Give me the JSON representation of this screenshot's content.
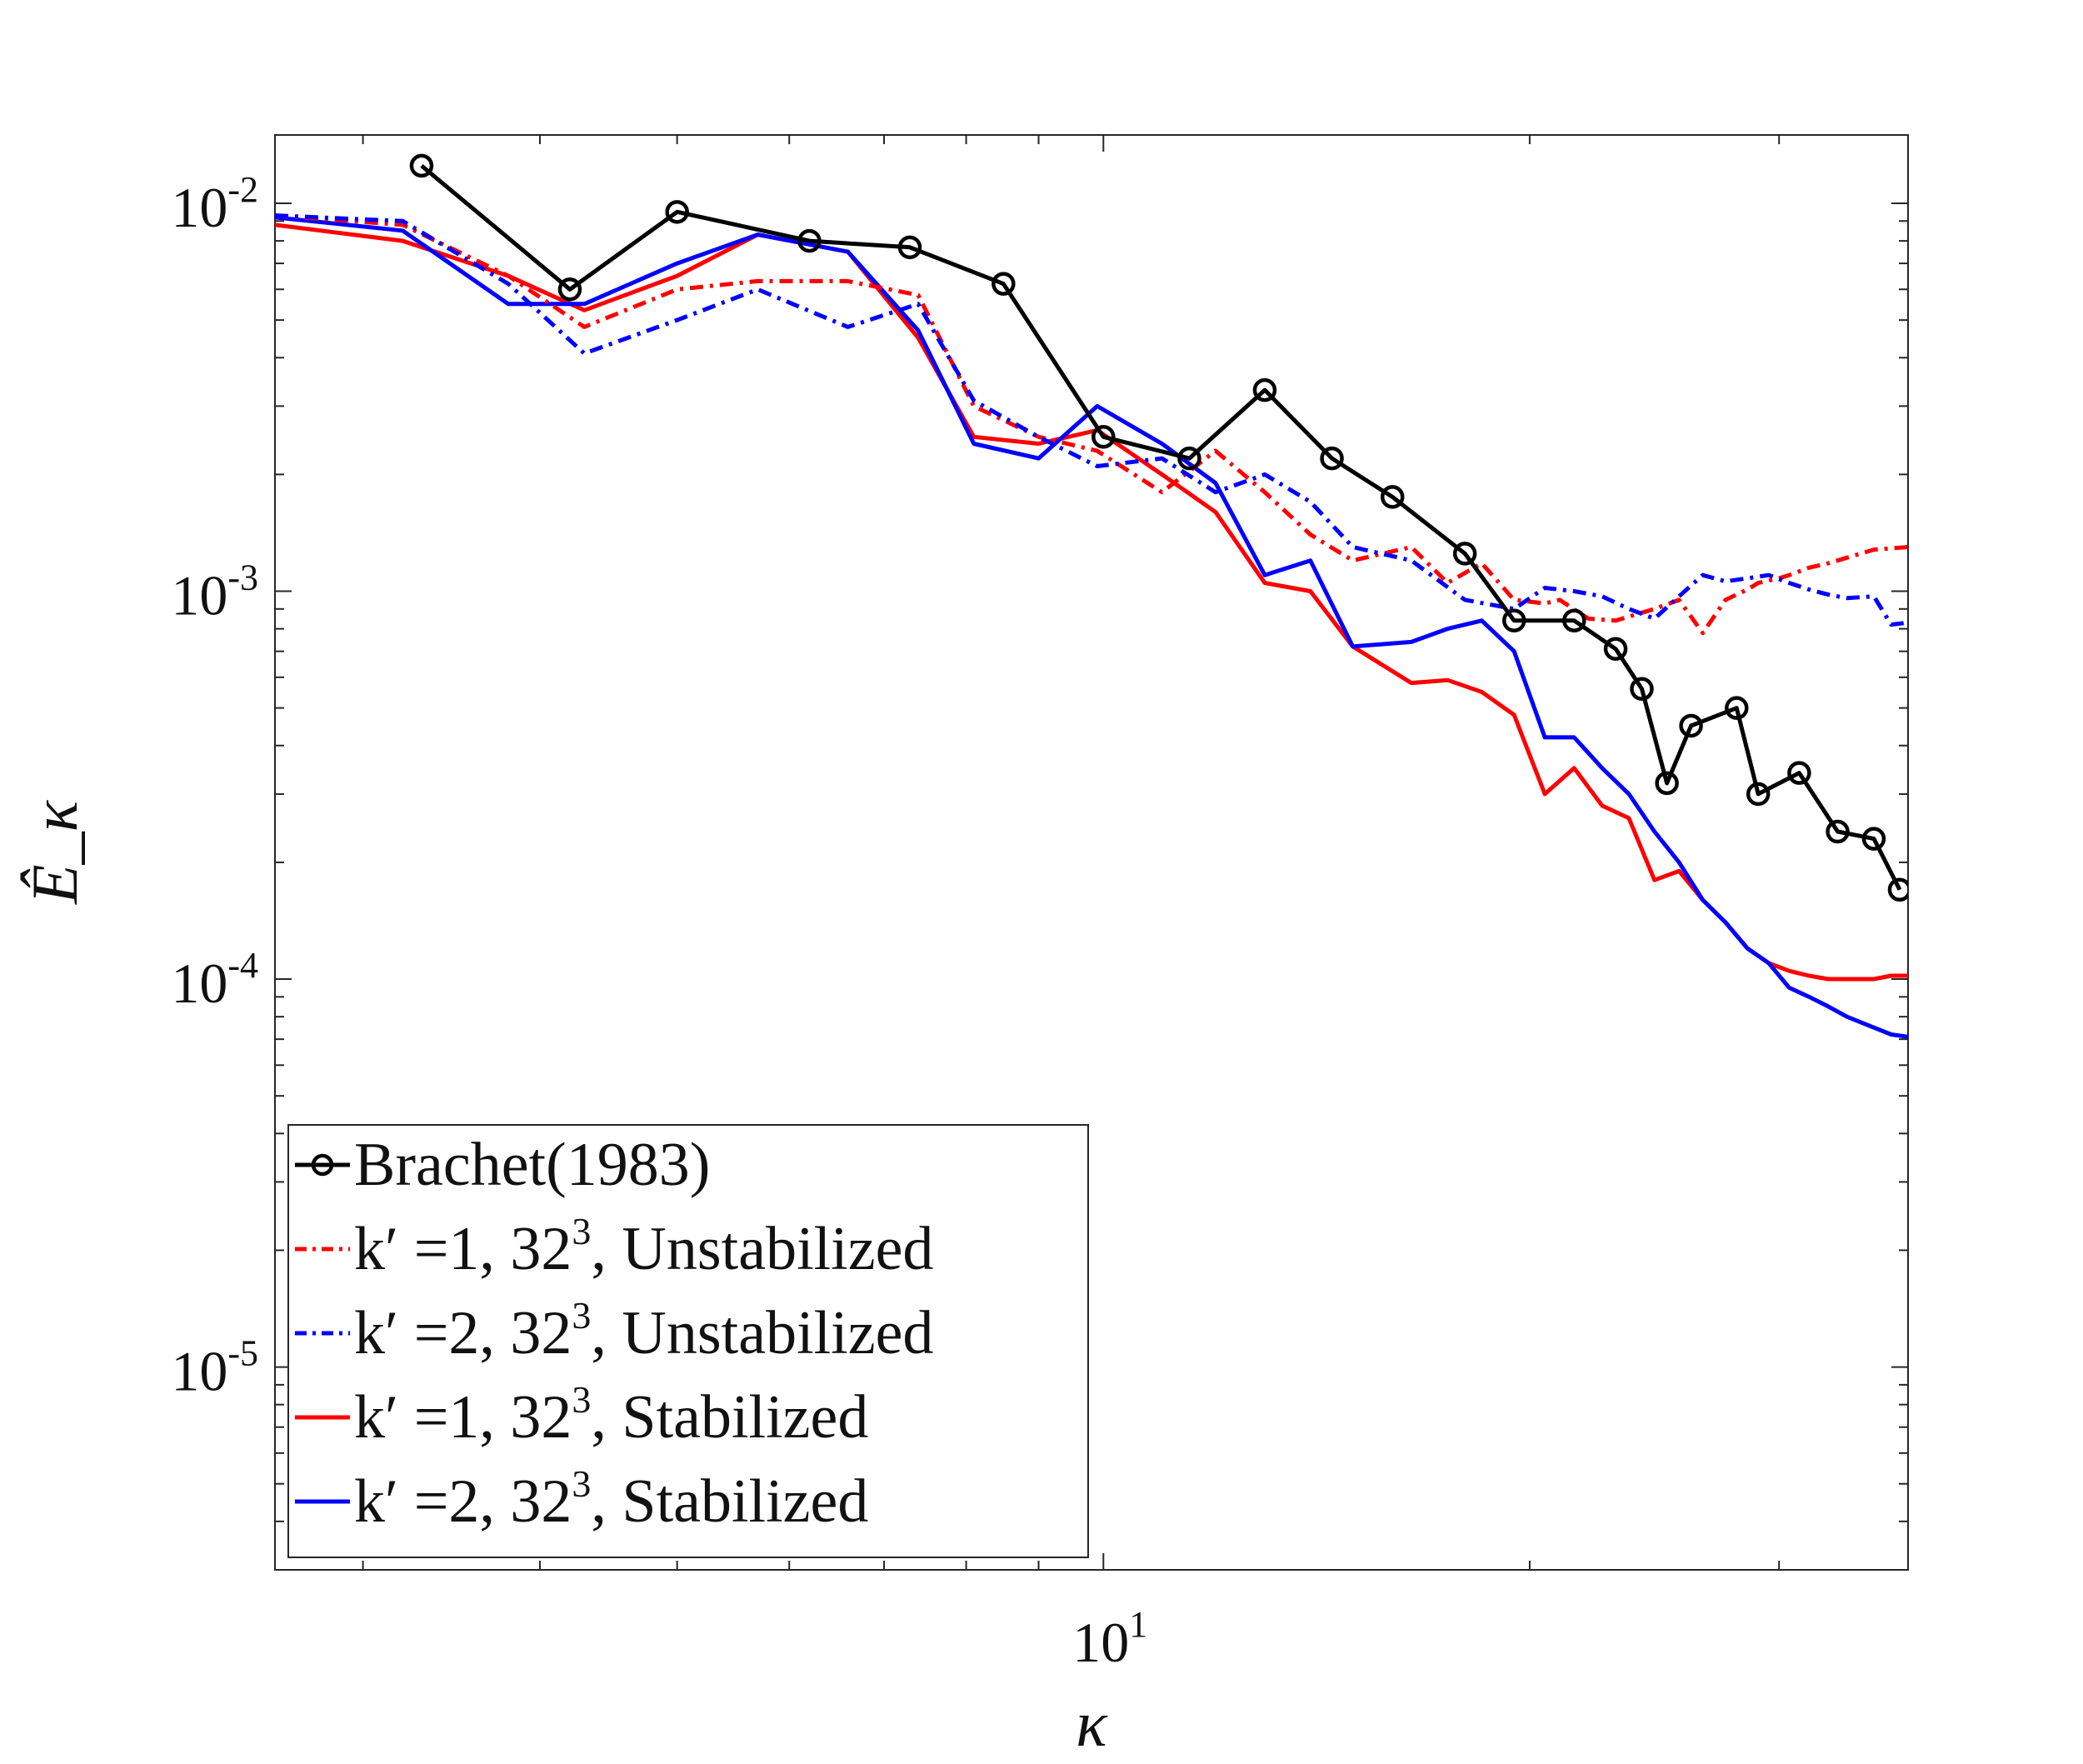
{
  "chart_data": {
    "type": "line",
    "scale": "log-log",
    "xlabel": "κ",
    "ylabel": "Ê_κ",
    "xlim": [
      2.6,
      37
    ],
    "ylim": [
      3e-06,
      0.015
    ],
    "x_ticks": [
      {
        "value": 10,
        "base": "10",
        "exp": "1"
      }
    ],
    "y_ticks": [
      {
        "value": 0.01,
        "base": "10",
        "exp": "-2"
      },
      {
        "value": 0.001,
        "base": "10",
        "exp": "-3"
      },
      {
        "value": 0.0001,
        "base": "10",
        "exp": "-4"
      },
      {
        "value": 1e-05,
        "base": "10",
        "exp": "-5"
      }
    ],
    "legend_position": "bottom-left",
    "series": [
      {
        "key": "brachet",
        "name": "Brachet(1983)",
        "legend": {
          "pre": "Brachet(1983)",
          "sup": "",
          "post": ""
        },
        "color": "#000000",
        "dash": "solid",
        "marker": "circle",
        "x": [
          3.3,
          4.2,
          5.0,
          6.2,
          7.3,
          8.5,
          10.0,
          11.5,
          13.0,
          14.5,
          16.0,
          18.0,
          19.5,
          21.5,
          23.0,
          24.0,
          25.0,
          26.0,
          28.0,
          29.0,
          31.0,
          33.0,
          35.0,
          36.5
        ],
        "y": [
          0.0125,
          0.006,
          0.0095,
          0.008,
          0.0077,
          0.0062,
          0.0025,
          0.0022,
          0.0033,
          0.0022,
          0.00175,
          0.00125,
          0.00084,
          0.00084,
          0.00071,
          0.00056,
          0.00032,
          0.00045,
          0.0005,
          0.0003,
          0.00034,
          0.00024,
          0.00023,
          0.00017
        ]
      },
      {
        "key": "k1_unstab",
        "name": "k' =1, 32^3, Unstabilized",
        "legend": {
          "pre": "k′ =1, 32",
          "sup": "3",
          "post": ", Unstabilized"
        },
        "color": "#ff0000",
        "dash": "dashdot",
        "marker": "none",
        "x": [
          2.6,
          3.2,
          3.8,
          4.3,
          5.0,
          5.7,
          6.6,
          7.4,
          8.1,
          9.0,
          9.9,
          11.0,
          12.0,
          13.0,
          14.0,
          15.0,
          16.5,
          17.5,
          18.5,
          19.5,
          20.5,
          21.0,
          22.0,
          23.0,
          24.5,
          25.5,
          26.5,
          27.5,
          28.5,
          29.0,
          30.0,
          30.5,
          31.5,
          32.5,
          33.5,
          35.0,
          36.0,
          37.0
        ],
        "y": [
          0.0093,
          0.0088,
          0.0065,
          0.0048,
          0.006,
          0.0063,
          0.0063,
          0.0058,
          0.003,
          0.0025,
          0.0023,
          0.0018,
          0.0023,
          0.0018,
          0.0014,
          0.0012,
          0.0013,
          0.00105,
          0.00118,
          0.00095,
          0.00093,
          0.00095,
          0.00085,
          0.00084,
          0.0009,
          0.00095,
          0.00078,
          0.00095,
          0.00101,
          0.00105,
          0.00108,
          0.0011,
          0.00115,
          0.00118,
          0.00122,
          0.00128,
          0.00129,
          0.0013
        ]
      },
      {
        "key": "k2_unstab",
        "name": "k' =2, 32^3, Unstabilized",
        "legend": {
          "pre": "k′ =2, 32",
          "sup": "3",
          "post": ", Unstabilized"
        },
        "color": "#0000ff",
        "dash": "dashdot",
        "marker": "none",
        "x": [
          2.6,
          3.2,
          3.8,
          4.3,
          5.0,
          5.7,
          6.6,
          7.4,
          8.1,
          9.0,
          9.9,
          11.0,
          12.0,
          13.0,
          14.0,
          15.0,
          16.5,
          18.0,
          19.5,
          20.5,
          21.5,
          22.5,
          23.5,
          24.5,
          25.5,
          26.5,
          27.5,
          28.5,
          29.5,
          30.5,
          31.5,
          32.5,
          33.5,
          35.0,
          36.0,
          37.0
        ],
        "y": [
          0.0093,
          0.009,
          0.0062,
          0.0041,
          0.005,
          0.006,
          0.0048,
          0.0055,
          0.0031,
          0.0025,
          0.0021,
          0.0022,
          0.0018,
          0.002,
          0.0017,
          0.0013,
          0.0012,
          0.00095,
          0.0009,
          0.00102,
          0.001,
          0.00097,
          0.0009,
          0.00085,
          0.00097,
          0.0011,
          0.00106,
          0.00108,
          0.0011,
          0.00105,
          0.00101,
          0.00098,
          0.00096,
          0.00097,
          0.00082,
          0.00083
        ]
      },
      {
        "key": "k1_stab",
        "name": "k' =1, 32^3, Stabilized",
        "legend": {
          "pre": "k′ =1, 32",
          "sup": "3",
          "post": ", Stabilized"
        },
        "color": "#ff0000",
        "dash": "solid",
        "marker": "none",
        "x": [
          2.6,
          3.2,
          3.8,
          4.3,
          5.0,
          5.7,
          6.6,
          7.4,
          8.1,
          9.0,
          9.9,
          11.0,
          12.0,
          13.0,
          14.0,
          15.0,
          16.5,
          17.5,
          18.5,
          19.5,
          20.5,
          21.5,
          22.5,
          23.5,
          24.5,
          25.5,
          26.5,
          27.5,
          28.5,
          29.5,
          30.5,
          31.5,
          32.5,
          33.5,
          35.0,
          36.0,
          37.0
        ],
        "y": [
          0.0088,
          0.008,
          0.0065,
          0.0053,
          0.0065,
          0.0083,
          0.0075,
          0.0045,
          0.0025,
          0.0024,
          0.0026,
          0.002,
          0.0016,
          0.00105,
          0.001,
          0.00072,
          0.00058,
          0.00059,
          0.00055,
          0.00048,
          0.0003,
          0.00035,
          0.00028,
          0.00026,
          0.00018,
          0.00019,
          0.00016,
          0.00014,
          0.00012,
          0.00011,
          0.000105,
          0.000102,
          0.0001,
          0.0001,
          0.0001,
          0.000102,
          0.000102
        ]
      },
      {
        "key": "k2_stab",
        "name": "k' =2, 32^3, Stabilized",
        "legend": {
          "pre": "k′ =2, 32",
          "sup": "3",
          "post": ", Stabilized"
        },
        "color": "#0000ff",
        "dash": "solid",
        "marker": "none",
        "x": [
          2.6,
          3.2,
          3.8,
          4.3,
          5.0,
          5.7,
          6.6,
          7.4,
          8.1,
          9.0,
          9.9,
          11.0,
          12.0,
          13.0,
          14.0,
          15.0,
          16.5,
          17.5,
          18.5,
          19.5,
          20.5,
          21.5,
          22.5,
          23.5,
          24.5,
          25.5,
          26.5,
          27.5,
          28.5,
          29.5,
          30.5,
          31.5,
          32.5,
          33.5,
          35.0,
          36.0,
          37.0
        ],
        "y": [
          0.0092,
          0.0085,
          0.0055,
          0.0055,
          0.007,
          0.0083,
          0.0075,
          0.0047,
          0.0024,
          0.0022,
          0.003,
          0.0024,
          0.0019,
          0.0011,
          0.0012,
          0.00072,
          0.00074,
          0.0008,
          0.00084,
          0.0007,
          0.00042,
          0.00042,
          0.00035,
          0.0003,
          0.00024,
          0.0002,
          0.00016,
          0.00014,
          0.00012,
          0.00011,
          9.5e-05,
          9e-05,
          8.5e-05,
          8e-05,
          7.5e-05,
          7.2e-05,
          7.1e-05
        ]
      }
    ]
  }
}
